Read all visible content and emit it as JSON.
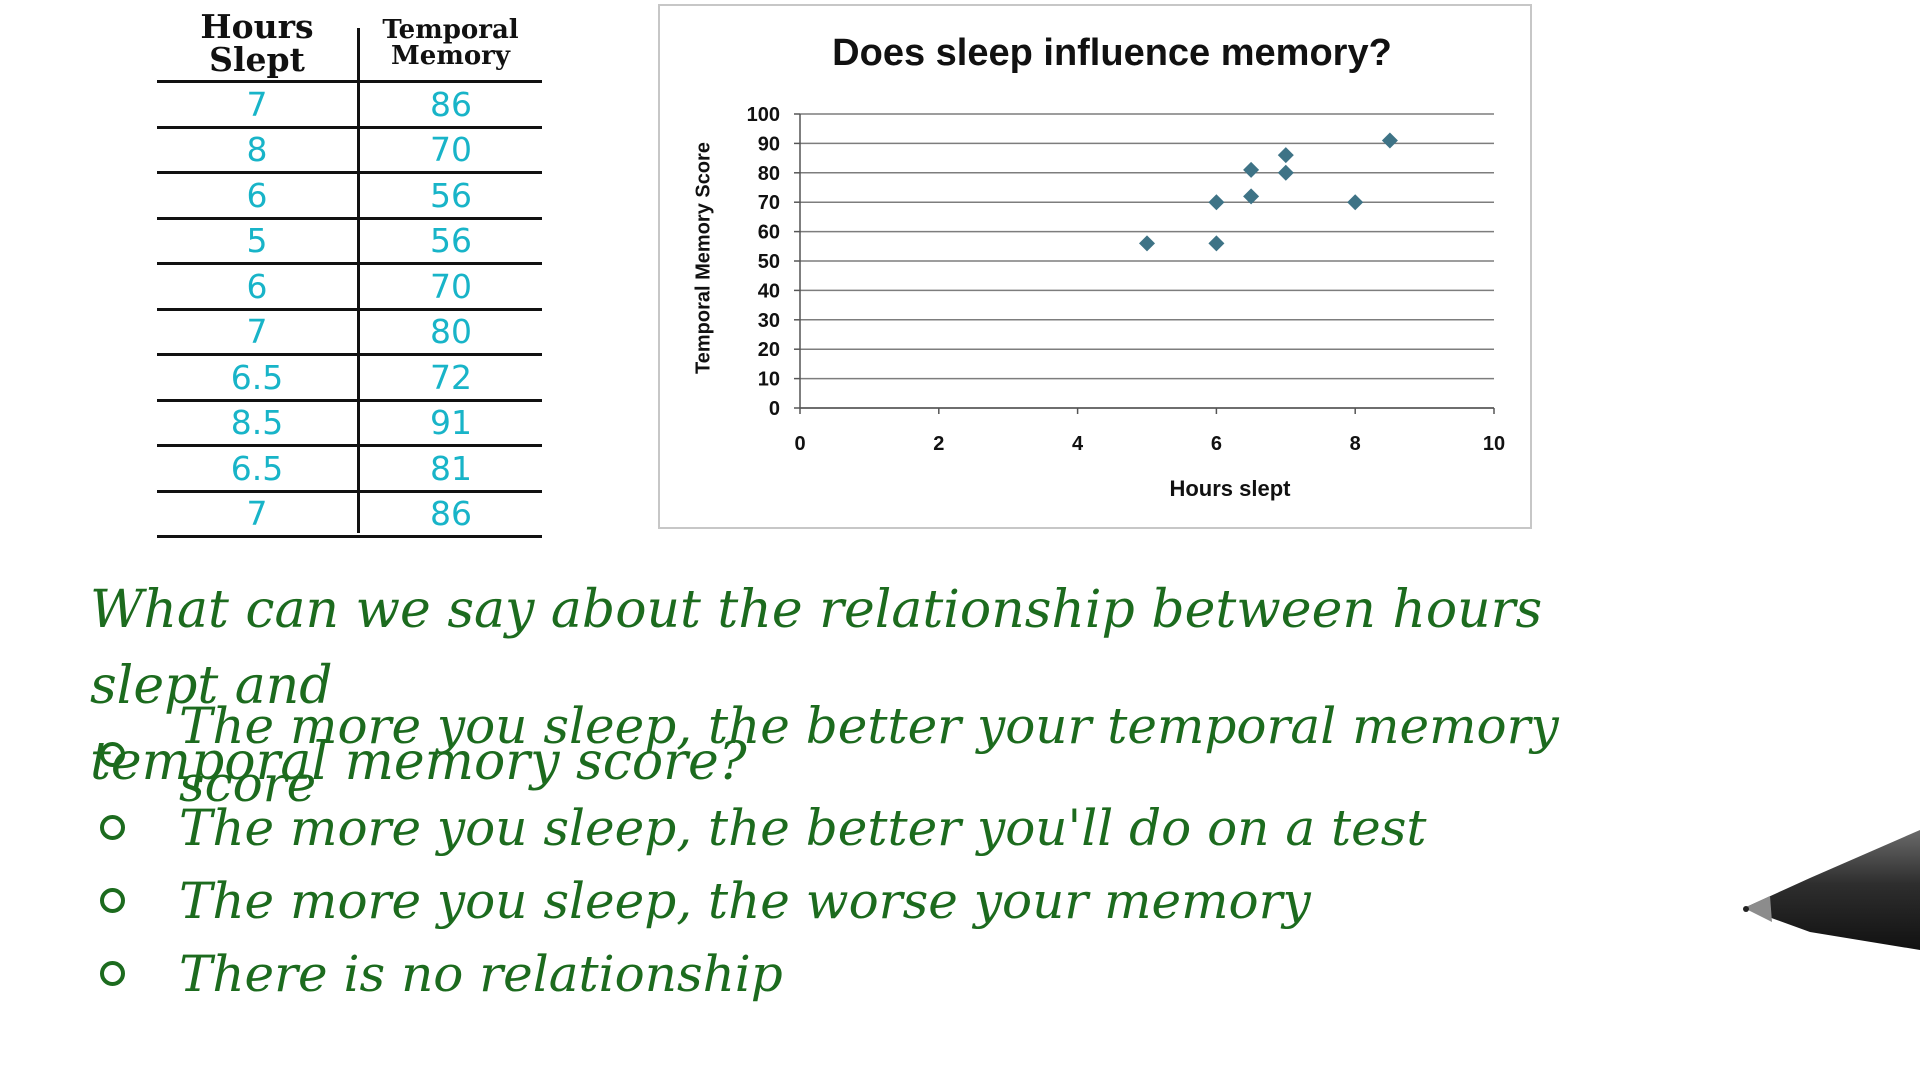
{
  "table": {
    "header_hours": "Hours Slept",
    "header_memory_line1": "Temporal",
    "header_memory_line2": "Memory",
    "rows": [
      {
        "hours": "7",
        "memory": "86"
      },
      {
        "hours": "8",
        "memory": "70"
      },
      {
        "hours": "6",
        "memory": "56"
      },
      {
        "hours": "5",
        "memory": "56"
      },
      {
        "hours": "6",
        "memory": "70"
      },
      {
        "hours": "7",
        "memory": "80"
      },
      {
        "hours": "6.5",
        "memory": "72"
      },
      {
        "hours": "8.5",
        "memory": "91"
      },
      {
        "hours": "6.5",
        "memory": "81"
      },
      {
        "hours": "7",
        "memory": "86"
      }
    ]
  },
  "chart_data": {
    "type": "scatter",
    "title": "Does sleep influence memory?",
    "xlabel": "Hours slept",
    "ylabel": "Temporal Memory Score",
    "xlim": [
      0,
      10
    ],
    "ylim": [
      0,
      100
    ],
    "xticks": [
      0,
      2,
      4,
      6,
      8,
      10
    ],
    "yticks": [
      0,
      10,
      20,
      30,
      40,
      50,
      60,
      70,
      80,
      90,
      100
    ],
    "grid": "horizontal",
    "marker": "diamond",
    "marker_color": "#3e7386",
    "points": [
      {
        "x": 5,
        "y": 56
      },
      {
        "x": 6,
        "y": 56
      },
      {
        "x": 6,
        "y": 70
      },
      {
        "x": 6.5,
        "y": 72
      },
      {
        "x": 6.5,
        "y": 81
      },
      {
        "x": 7,
        "y": 80
      },
      {
        "x": 7,
        "y": 86
      },
      {
        "x": 8,
        "y": 70
      },
      {
        "x": 8.5,
        "y": 91
      }
    ]
  },
  "question": {
    "line1": "What can we say about the relationship between hours slept and",
    "line2": "temporal memory score?",
    "options": [
      "The more you sleep, the better your temporal memory score",
      "The more you sleep, the better you'll do on a test",
      "The more you sleep, the worse your memory",
      "There is no relationship"
    ]
  },
  "colors": {
    "handwriting_green": "#1c6b1e",
    "table_values_cyan": "#18b4c8",
    "ink_black": "#111111"
  },
  "icons": [
    "pen-icon",
    "radio-circle-icon"
  ]
}
